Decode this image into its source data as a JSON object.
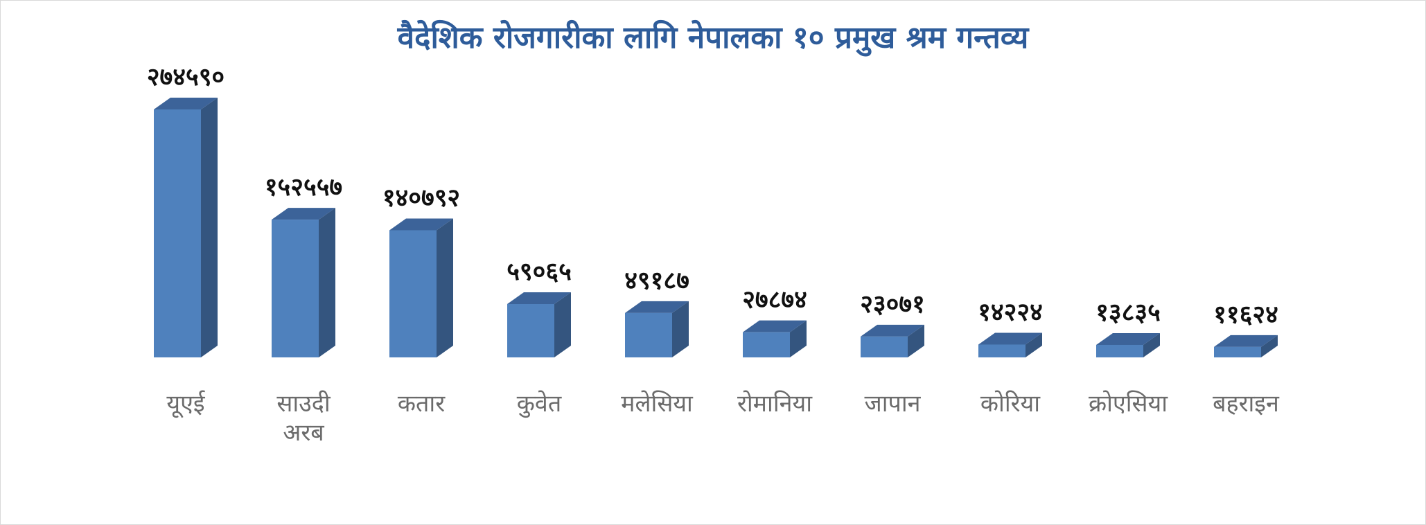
{
  "chart_data": {
    "type": "bar",
    "title": "वैदेशिक रोजगारीका लागि नेपालका १० प्रमुख श्रम गन्तव्य",
    "xlabel": "",
    "ylabel": "",
    "categories": [
      [
        "यूएई"
      ],
      [
        "साउदी",
        "अरब"
      ],
      [
        "कतार"
      ],
      [
        "कुवेत"
      ],
      [
        "मलेसिया"
      ],
      [
        "रोमानिया"
      ],
      [
        "जापान"
      ],
      [
        "कोरिया"
      ],
      [
        "क्रोएसिया"
      ],
      [
        "बहराइन"
      ]
    ],
    "values": [
      274590,
      152557,
      140792,
      59065,
      49187,
      27874,
      23071,
      14224,
      13835,
      11624
    ],
    "value_labels": [
      "२७४५९०",
      "१५२५५७",
      "१४०७९२",
      "५९०६५",
      "४९१८७",
      "२७८७४",
      "२३०७१",
      "१४२२४",
      "१३८३५",
      "११६२४"
    ],
    "ylim": [
      0,
      274590
    ],
    "grid": false,
    "legend": "none",
    "colors": {
      "front": "#4f81bd",
      "side": "#34557f",
      "top": "#3c6399",
      "title": "#2e5c9a",
      "category_text": "#6b6b6b"
    }
  }
}
